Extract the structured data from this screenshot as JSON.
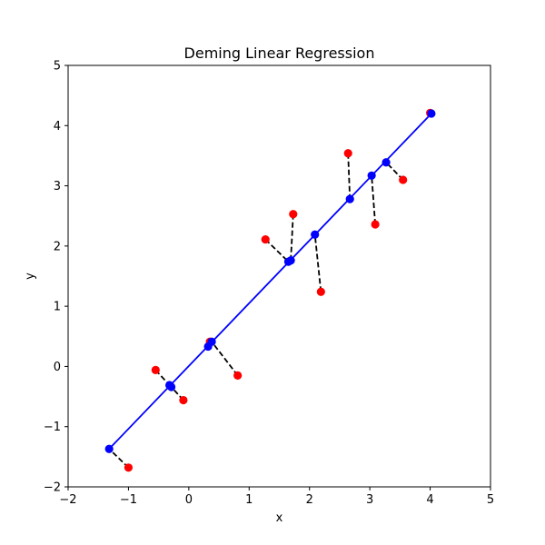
{
  "chart_data": {
    "type": "scatter",
    "title": "Deming Linear Regression",
    "xlabel": "x",
    "ylabel": "y",
    "xlim": [
      -2,
      5
    ],
    "ylim": [
      -2,
      5
    ],
    "x_ticks": [
      -2,
      -1,
      0,
      1,
      2,
      3,
      4,
      5
    ],
    "y_ticks": [
      -2,
      -1,
      0,
      1,
      2,
      3,
      4,
      5
    ],
    "grid": false,
    "observed_points": {
      "color": "#ff0000",
      "points": [
        {
          "x": -1.0,
          "y": -1.68
        },
        {
          "x": -0.55,
          "y": -0.06
        },
        {
          "x": -0.09,
          "y": -0.56
        },
        {
          "x": 0.35,
          "y": 0.41
        },
        {
          "x": 0.81,
          "y": -0.15
        },
        {
          "x": 1.27,
          "y": 2.11
        },
        {
          "x": 1.73,
          "y": 2.53
        },
        {
          "x": 2.19,
          "y": 1.24
        },
        {
          "x": 2.64,
          "y": 3.54
        },
        {
          "x": 3.09,
          "y": 2.36
        },
        {
          "x": 3.55,
          "y": 3.1
        },
        {
          "x": 4.0,
          "y": 4.21
        }
      ]
    },
    "fitted_points": {
      "color": "#0000ff",
      "points": [
        {
          "x": -1.32,
          "y": -1.37
        },
        {
          "x": -0.32,
          "y": -0.31
        },
        {
          "x": -0.29,
          "y": -0.34
        },
        {
          "x": 0.32,
          "y": 0.33
        },
        {
          "x": 0.38,
          "y": 0.41
        },
        {
          "x": 1.65,
          "y": 1.74
        },
        {
          "x": 1.69,
          "y": 1.76
        },
        {
          "x": 2.09,
          "y": 2.19
        },
        {
          "x": 2.67,
          "y": 2.78
        },
        {
          "x": 3.03,
          "y": 3.17
        },
        {
          "x": 3.27,
          "y": 3.39
        },
        {
          "x": 4.02,
          "y": 4.2
        }
      ]
    },
    "fit_line": {
      "color": "#0000ff",
      "x": [
        -1.32,
        4.02
      ],
      "y": [
        -1.37,
        4.2
      ]
    },
    "residual_style": {
      "color": "#000000",
      "dashed": true
    }
  }
}
